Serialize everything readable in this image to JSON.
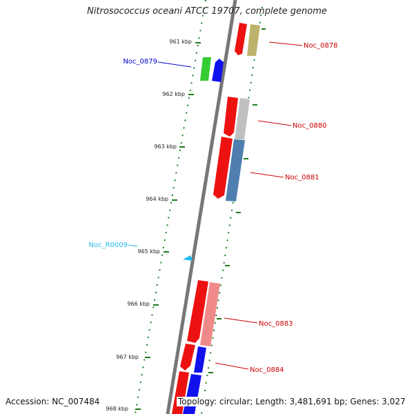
{
  "title": "Nitrosococcus oceani ATCC 19707, complete genome",
  "footer": {
    "accession": "Accession: NC_007484",
    "topology": "Topology: circular; Length: 3,481,691 bp; Genes: 3,027"
  },
  "kbp_labels": [
    "961 kbp",
    "962 kbp",
    "963 kbp",
    "964 kbp",
    "965 kbp",
    "966 kbp",
    "967 kbp",
    "968 kbp"
  ],
  "gene_labels": {
    "noc0878": "Noc_0878",
    "noc0879": "Noc_0879",
    "noc0880": "Noc_0880",
    "noc0881": "Noc_0881",
    "noc_r0009": "Noc_R0009",
    "noc0883": "Noc_0883",
    "noc0884": "Noc_0884"
  },
  "colors": {
    "red": "#ee1111",
    "blue": "#1111ee",
    "green": "#33cc33",
    "olive": "#bdb26b",
    "grey": "#c0c0c0",
    "steel": "#4f7fae",
    "pink": "#f08a8a",
    "cyan": "#22bbee",
    "tick": "#1a7a1a",
    "backbone": "#7a7a7a"
  }
}
